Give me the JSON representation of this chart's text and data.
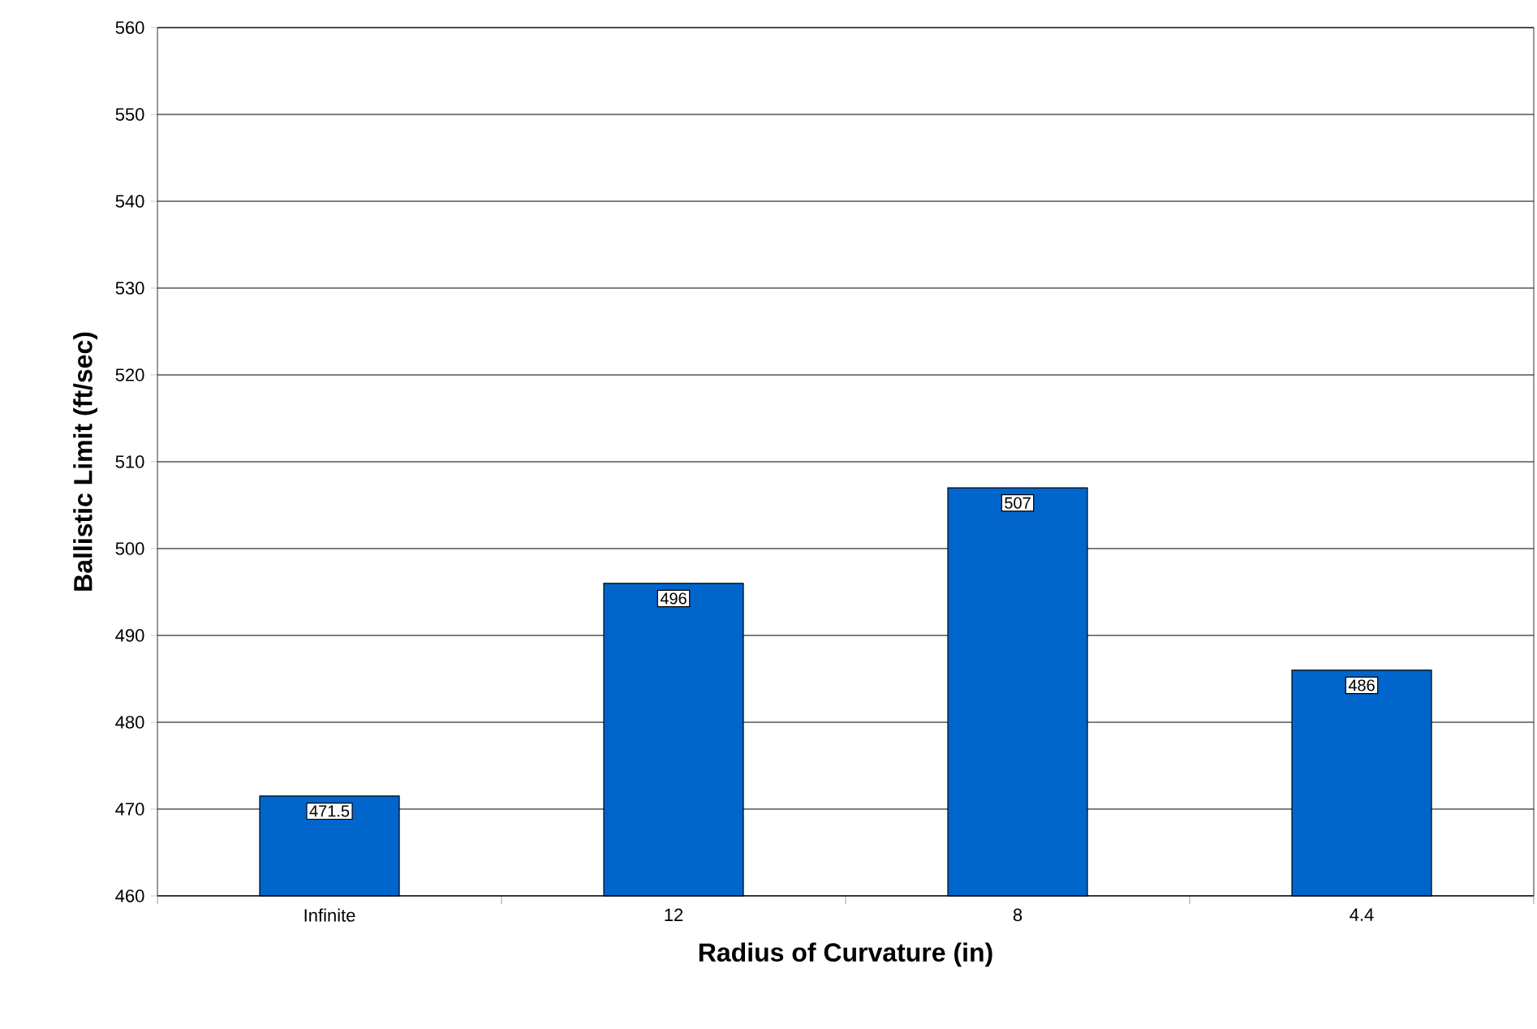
{
  "chart_data": {
    "type": "bar",
    "xlabel": "Radius of Curvature (in)",
    "ylabel": "Ballistic Limit (ft/sec)",
    "categories": [
      "Infinite",
      "12",
      "8",
      "4.4"
    ],
    "values": [
      471.5,
      496,
      507,
      486
    ],
    "color": "#0066cc",
    "ylim": [
      460,
      560
    ],
    "yticks": [
      460,
      470,
      480,
      490,
      500,
      510,
      520,
      530,
      540,
      550,
      560
    ],
    "grid": "y",
    "data_labels": true
  }
}
